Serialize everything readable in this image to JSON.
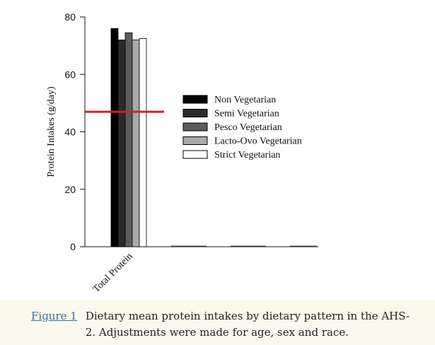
{
  "chart_data": {
    "type": "bar",
    "ylabel": "Protein Intakes (g/day)",
    "ylim": [
      0,
      80
    ],
    "yticks": [
      0,
      20,
      40,
      60,
      80
    ],
    "categories": [
      "Total Protein"
    ],
    "series": [
      {
        "name": "Non Vegetarian",
        "values": [
          76
        ],
        "color": "#000000"
      },
      {
        "name": "Semi Vegetarian",
        "values": [
          72
        ],
        "color": "#2b2b2b"
      },
      {
        "name": "Pesco Vegetarian",
        "values": [
          74.5
        ],
        "color": "#5c5c5c"
      },
      {
        "name": "Lacto-Ovo Vegetarian",
        "values": [
          72
        ],
        "color": "#a9a9a9"
      },
      {
        "name": "Strict Vegetarian",
        "values": [
          72.5
        ],
        "color": "#ffffff"
      }
    ],
    "reference_line": {
      "value": 47,
      "color": "#c0282d"
    },
    "legend_position": "center-right",
    "grid": false
  },
  "caption": {
    "label": "Figure 1",
    "text": "Dietary mean protein intakes by dietary pattern in the AHS-2. Adjustments were made for age, sex and race."
  }
}
